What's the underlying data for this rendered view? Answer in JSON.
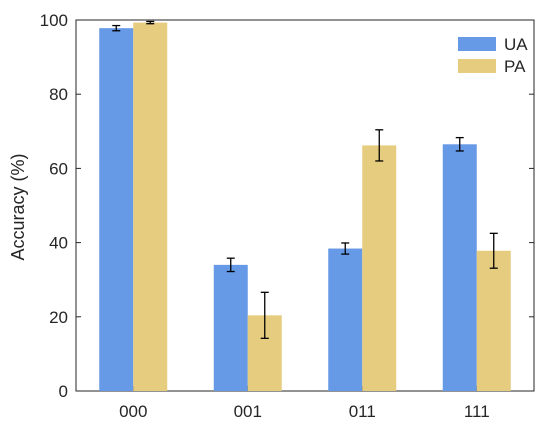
{
  "chart_data": {
    "type": "bar",
    "categories": [
      "000",
      "001",
      "011",
      "111"
    ],
    "series": [
      {
        "name": "UA",
        "color": "#6699e6",
        "values": [
          97.8,
          34.0,
          38.4,
          66.5
        ],
        "errors": [
          0.7,
          1.8,
          1.5,
          1.8
        ]
      },
      {
        "name": "PA",
        "color": "#e6cc7f",
        "values": [
          99.3,
          20.4,
          66.2,
          37.8
        ],
        "errors": [
          0.3,
          6.2,
          4.2,
          4.7
        ]
      }
    ],
    "title": "",
    "xlabel": "",
    "ylabel": "Accuracy (%)",
    "ylim": [
      0,
      100
    ],
    "yticks": [
      "0",
      "20",
      "40",
      "60",
      "80",
      "100"
    ],
    "grid": false,
    "legend_position": "top-right"
  }
}
